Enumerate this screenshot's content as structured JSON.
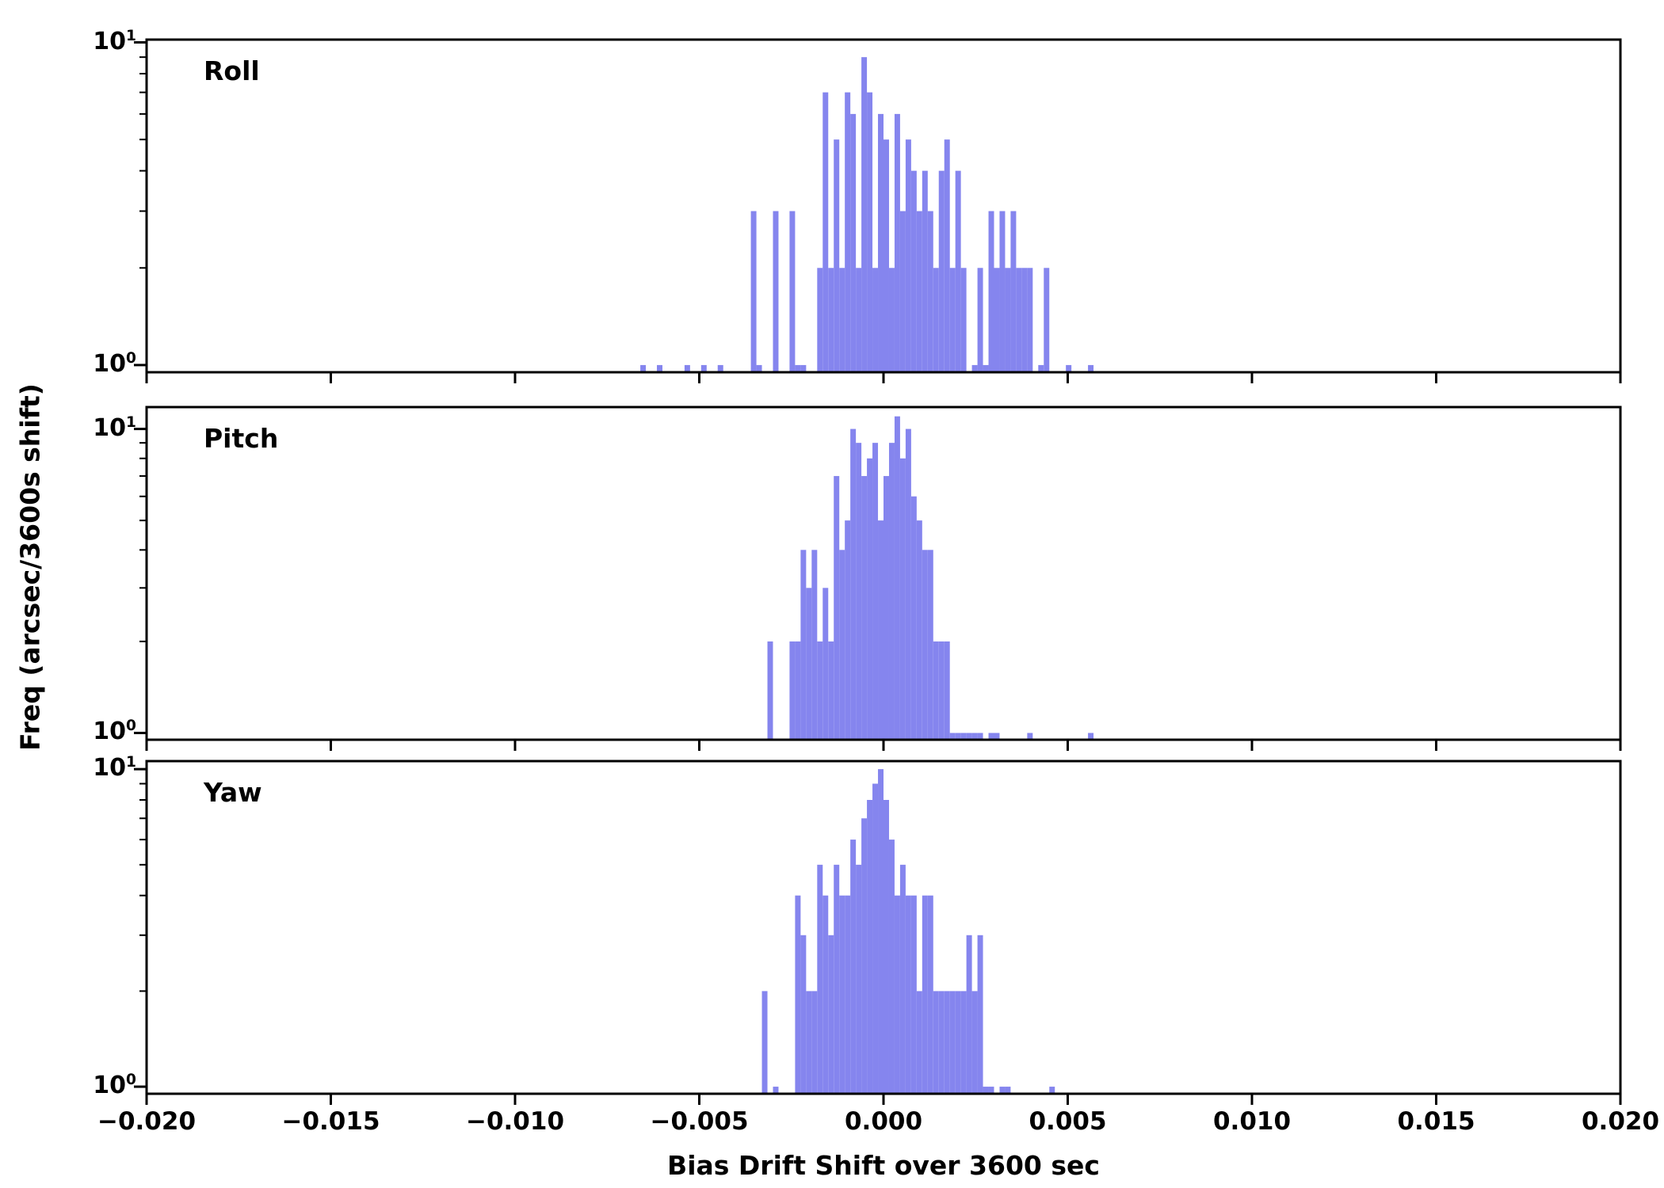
{
  "figure": {
    "xlabel": "Bias Drift Shift over 3600 sec",
    "ylabel": "Freq (arcsec/3600s shift)"
  },
  "colors": {
    "bar": "#8585ee",
    "axis": "#000000",
    "text": "#000000",
    "background": "#ffffff"
  },
  "chart_data": {
    "type": "bar",
    "subtype": "histogram",
    "title": "",
    "xlabel": "Bias Drift Shift over 3600 sec",
    "ylabel": "Freq (arcsec/3600s shift)",
    "x_range": [
      -0.02,
      0.02
    ],
    "y_scale": "log",
    "bin_width": 0.00015,
    "x_ticks": {
      "values": [
        -0.02,
        -0.015,
        -0.01,
        -0.005,
        0.0,
        0.005,
        0.01,
        0.015,
        0.02
      ],
      "labels": [
        "−0.020",
        "−0.015",
        "−0.010",
        "−0.005",
        "0.000",
        "0.005",
        "0.010",
        "0.015",
        "0.020"
      ]
    },
    "y_ticks": {
      "values": [
        1,
        10
      ],
      "labels": [
        "10^0",
        "10^1"
      ]
    },
    "y_minor_ticks": [
      2,
      3,
      4,
      5,
      6,
      7,
      8,
      9
    ],
    "panels": [
      {
        "label": "Roll",
        "y_limits": [
          0.95,
          10.2
        ],
        "bins": [
          [
            -0.0066,
            1
          ],
          [
            -0.00615,
            1
          ],
          [
            -0.0054,
            1
          ],
          [
            -0.00495,
            1
          ],
          [
            -0.0045,
            1
          ],
          [
            -0.0036,
            3
          ],
          [
            -0.00345,
            1
          ],
          [
            -0.003,
            3
          ],
          [
            -0.00255,
            3
          ],
          [
            -0.0024,
            1
          ],
          [
            -0.00225,
            1
          ],
          [
            -0.0018,
            2
          ],
          [
            -0.00165,
            7
          ],
          [
            -0.0015,
            2
          ],
          [
            -0.00135,
            5
          ],
          [
            -0.0012,
            2
          ],
          [
            -0.00105,
            7
          ],
          [
            -0.0009,
            6
          ],
          [
            -0.00075,
            2
          ],
          [
            -0.0006,
            9
          ],
          [
            -0.00045,
            7
          ],
          [
            -0.0003,
            2
          ],
          [
            -0.00015,
            6
          ],
          [
            0.0,
            5
          ],
          [
            0.00015,
            2
          ],
          [
            0.0003,
            6
          ],
          [
            0.00045,
            3
          ],
          [
            0.0006,
            5
          ],
          [
            0.00075,
            4
          ],
          [
            0.0009,
            3
          ],
          [
            0.00105,
            4
          ],
          [
            0.0012,
            3
          ],
          [
            0.00135,
            2
          ],
          [
            0.0015,
            4
          ],
          [
            0.00165,
            5
          ],
          [
            0.0018,
            2
          ],
          [
            0.00195,
            4
          ],
          [
            0.0021,
            2
          ],
          [
            0.0024,
            1
          ],
          [
            0.00255,
            2
          ],
          [
            0.0027,
            1
          ],
          [
            0.00285,
            3
          ],
          [
            0.003,
            2
          ],
          [
            0.00315,
            3
          ],
          [
            0.0033,
            2
          ],
          [
            0.00345,
            3
          ],
          [
            0.0036,
            2
          ],
          [
            0.00375,
            2
          ],
          [
            0.0039,
            2
          ],
          [
            0.0042,
            1
          ],
          [
            0.00435,
            2
          ],
          [
            0.00495,
            1
          ],
          [
            0.00555,
            1
          ]
        ]
      },
      {
        "label": "Pitch",
        "y_limits": [
          0.95,
          11.8
        ],
        "bins": [
          [
            -0.00315,
            2
          ],
          [
            -0.00255,
            2
          ],
          [
            -0.0024,
            2
          ],
          [
            -0.00225,
            4
          ],
          [
            -0.0021,
            3
          ],
          [
            -0.00195,
            4
          ],
          [
            -0.0018,
            2
          ],
          [
            -0.00165,
            3
          ],
          [
            -0.0015,
            2
          ],
          [
            -0.00135,
            7
          ],
          [
            -0.0012,
            4
          ],
          [
            -0.00105,
            5
          ],
          [
            -0.0009,
            10
          ],
          [
            -0.00075,
            9
          ],
          [
            -0.0006,
            7
          ],
          [
            -0.00045,
            8
          ],
          [
            -0.0003,
            9
          ],
          [
            -0.00015,
            5
          ],
          [
            0.0,
            7
          ],
          [
            0.00015,
            9
          ],
          [
            0.0003,
            11
          ],
          [
            0.00045,
            8
          ],
          [
            0.0006,
            10
          ],
          [
            0.00075,
            6
          ],
          [
            0.0009,
            5
          ],
          [
            0.00105,
            4
          ],
          [
            0.0012,
            4
          ],
          [
            0.00135,
            2
          ],
          [
            0.0015,
            2
          ],
          [
            0.00165,
            2
          ],
          [
            0.0018,
            1
          ],
          [
            0.00195,
            1
          ],
          [
            0.0021,
            1
          ],
          [
            0.00225,
            1
          ],
          [
            0.0024,
            1
          ],
          [
            0.00255,
            1
          ],
          [
            0.00285,
            1
          ],
          [
            0.003,
            1
          ],
          [
            0.0039,
            1
          ],
          [
            0.00555,
            1
          ]
        ]
      },
      {
        "label": "Yaw",
        "y_limits": [
          0.95,
          10.6
        ],
        "bins": [
          [
            -0.0033,
            2
          ],
          [
            -0.003,
            1
          ],
          [
            -0.0024,
            4
          ],
          [
            -0.00225,
            3
          ],
          [
            -0.0021,
            2
          ],
          [
            -0.00195,
            2
          ],
          [
            -0.0018,
            5
          ],
          [
            -0.00165,
            4
          ],
          [
            -0.0015,
            3
          ],
          [
            -0.00135,
            5
          ],
          [
            -0.0012,
            4
          ],
          [
            -0.00105,
            4
          ],
          [
            -0.0009,
            6
          ],
          [
            -0.00075,
            5
          ],
          [
            -0.0006,
            7
          ],
          [
            -0.00045,
            8
          ],
          [
            -0.0003,
            9
          ],
          [
            -0.00015,
            10
          ],
          [
            0.0,
            8
          ],
          [
            0.00015,
            6
          ],
          [
            0.0003,
            4
          ],
          [
            0.00045,
            5
          ],
          [
            0.0006,
            4
          ],
          [
            0.00075,
            4
          ],
          [
            0.0009,
            2
          ],
          [
            0.00105,
            4
          ],
          [
            0.0012,
            4
          ],
          [
            0.00135,
            2
          ],
          [
            0.0015,
            2
          ],
          [
            0.00165,
            2
          ],
          [
            0.0018,
            2
          ],
          [
            0.00195,
            2
          ],
          [
            0.0021,
            2
          ],
          [
            0.00225,
            3
          ],
          [
            0.0024,
            2
          ],
          [
            0.00255,
            3
          ],
          [
            0.0027,
            1
          ],
          [
            0.00285,
            1
          ],
          [
            0.00315,
            1
          ],
          [
            0.0033,
            1
          ],
          [
            0.0045,
            1
          ]
        ]
      }
    ]
  }
}
